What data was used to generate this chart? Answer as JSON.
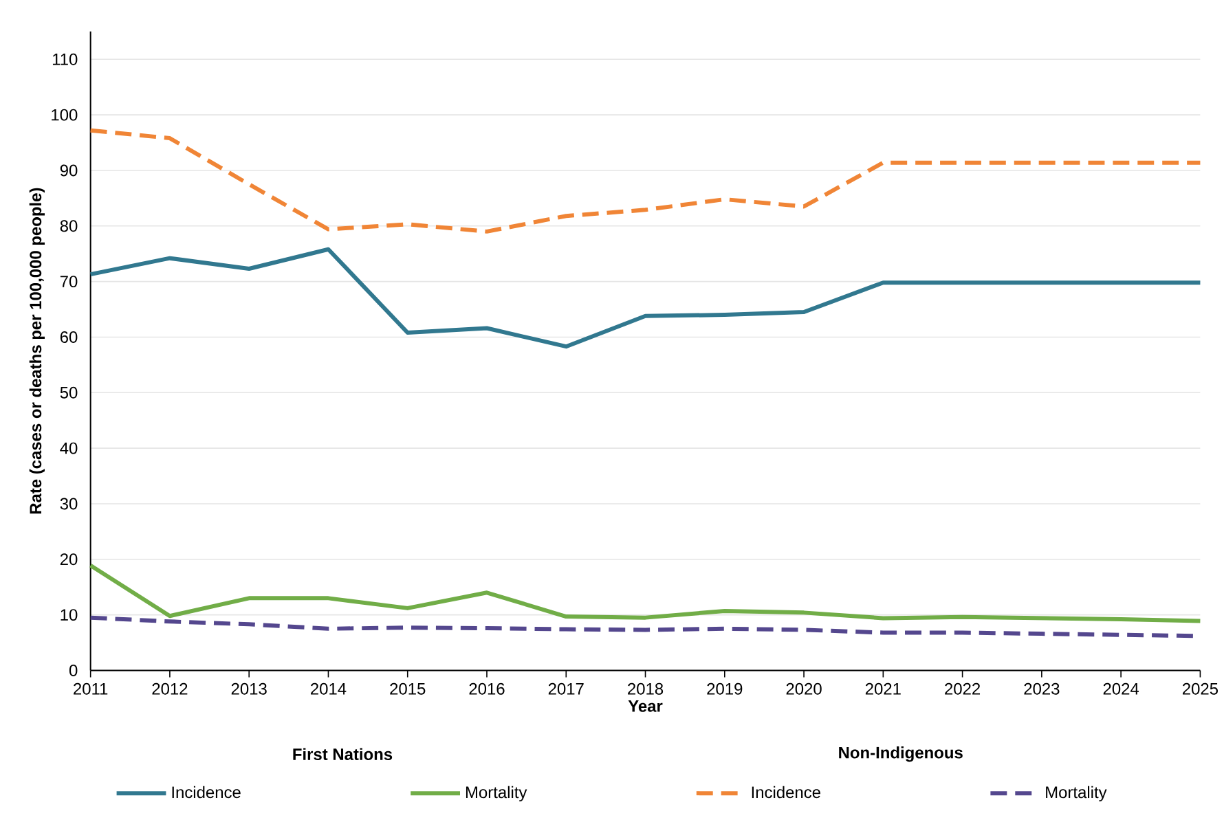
{
  "chart_data": {
    "type": "line",
    "x": [
      2011,
      2012,
      2013,
      2014,
      2015,
      2016,
      2017,
      2018,
      2019,
      2020,
      2021,
      2022,
      2023,
      2024,
      2025
    ],
    "series": [
      {
        "name": "Incidence",
        "color": "#31788f",
        "line_style": "solid",
        "values": [
          71.3,
          74.2,
          72.3,
          75.8,
          60.8,
          61.6,
          58.3,
          63.8,
          64.0,
          64.5,
          69.8,
          69.8,
          69.8,
          69.8,
          69.8
        ]
      },
      {
        "name": "Mortality",
        "color": "#71ad47",
        "line_style": "solid",
        "values": [
          18.9,
          9.8,
          13.0,
          13.0,
          11.2,
          14.0,
          9.7,
          9.5,
          10.7,
          10.4,
          9.4,
          9.6,
          9.4,
          9.2,
          8.9
        ]
      },
      {
        "name": "Incidence",
        "color": "#f08536",
        "line_style": "dashed",
        "values": [
          97.2,
          95.8,
          87.5,
          79.4,
          80.3,
          79.0,
          81.8,
          82.9,
          84.8,
          83.5,
          91.4,
          91.4,
          91.4,
          91.4,
          91.4
        ]
      },
      {
        "name": "Mortality",
        "color": "#54478e",
        "line_style": "dashed",
        "values": [
          9.5,
          8.8,
          8.3,
          7.5,
          7.7,
          7.6,
          7.4,
          7.3,
          7.5,
          7.3,
          6.8,
          6.8,
          6.6,
          6.4,
          6.2
        ]
      }
    ],
    "xlabel": "Year",
    "ylabel": "Rate (cases or deaths per 100,000 people)",
    "xlim": [
      2011,
      2025
    ],
    "xticks": [
      2011,
      2012,
      2013,
      2014,
      2015,
      2016,
      2017,
      2018,
      2019,
      2020,
      2021,
      2022,
      2023,
      2024,
      2025
    ],
    "ylim": [
      0,
      115
    ],
    "yticks": [
      0,
      10,
      20,
      30,
      40,
      50,
      60,
      70,
      80,
      90,
      100,
      110
    ],
    "grid": "y",
    "legend": "bottom",
    "marker": "none",
    "annotations": [
      "First Nations",
      "Non-Indigenous"
    ]
  }
}
